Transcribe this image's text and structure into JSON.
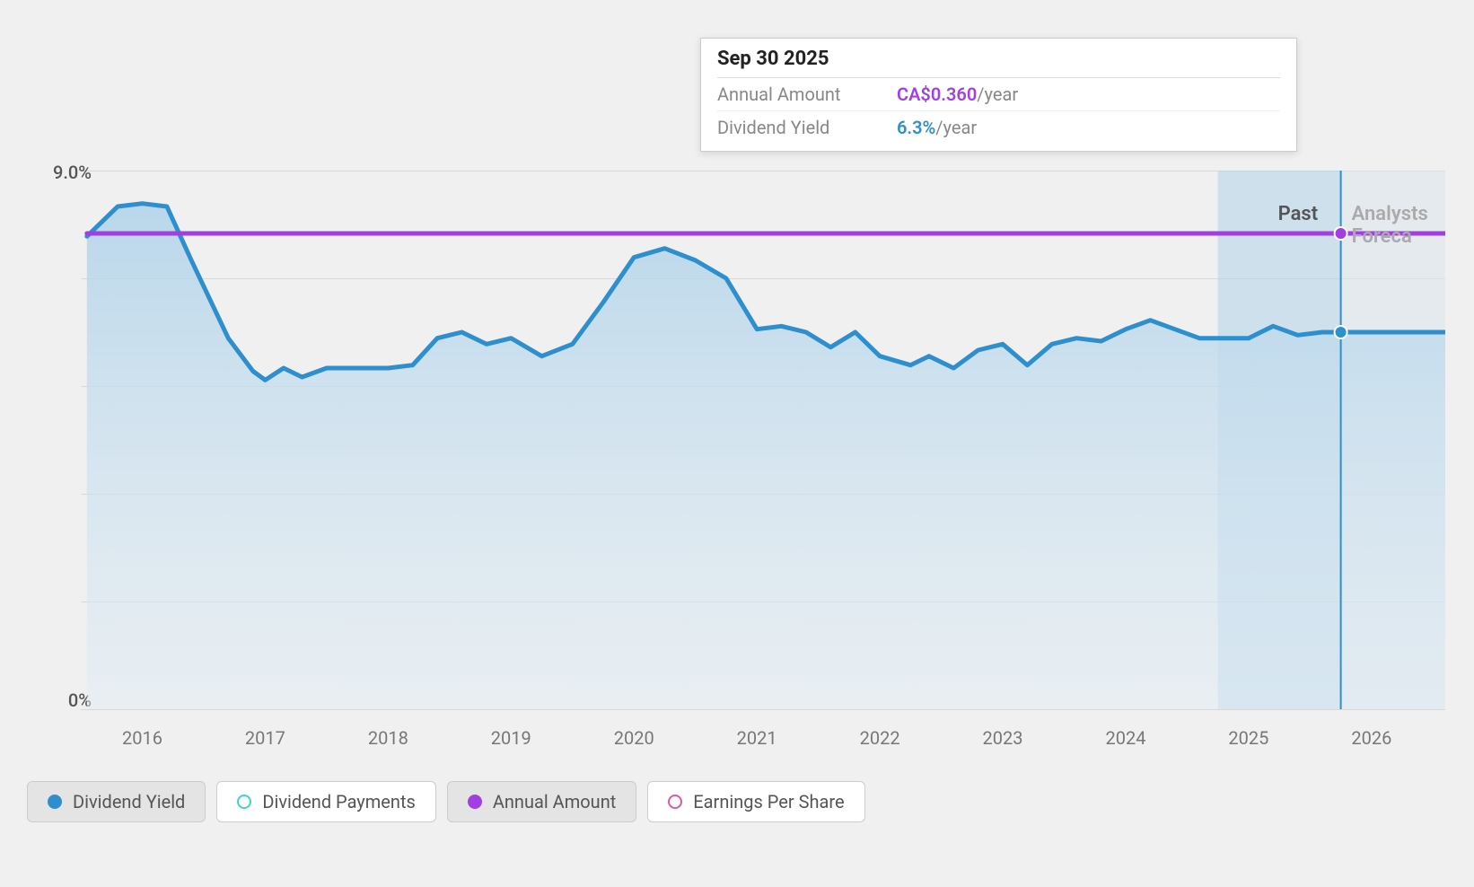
{
  "chart": {
    "type": "line-area",
    "background_color": "#f0f0f0",
    "plot_background": "#f0f0f0",
    "grid_color": "#d8d8d8",
    "y_axis": {
      "min": 0,
      "max": 9.0,
      "ticks": [
        0,
        1.8,
        3.6,
        5.4,
        7.2,
        9.0
      ],
      "visible_labels": {
        "0": "0%",
        "9": "9.0%"
      },
      "label_fontsize": 20,
      "label_color": "#555555"
    },
    "x_axis": {
      "min": 2015.5,
      "max": 2026.6,
      "ticks": [
        2016,
        2017,
        2018,
        2019,
        2020,
        2021,
        2022,
        2023,
        2024,
        2025,
        2026
      ],
      "label_fontsize": 20,
      "label_color": "#777777"
    },
    "bands": {
      "past": {
        "start": 2024.75,
        "end": 2025.75,
        "color": "#b3d4ea",
        "opacity": 0.55,
        "label": "Past",
        "label_color": "#555555"
      },
      "forecast": {
        "start": 2025.75,
        "end": 2026.6,
        "color": "#dce6ef",
        "opacity": 0.55,
        "label": "Analysts Foreca",
        "label_color": "#aaaaaa"
      }
    },
    "series": {
      "dividend_yield": {
        "label": "Dividend Yield",
        "color": "#2e8fce",
        "fill_top": "#b3d4ea",
        "fill_bottom": "#e1ecf4",
        "line_width": 5,
        "marker": {
          "x": 2025.75,
          "y": 6.3,
          "r": 7
        },
        "points": [
          [
            2015.55,
            7.9
          ],
          [
            2015.8,
            8.4
          ],
          [
            2016.0,
            8.45
          ],
          [
            2016.2,
            8.4
          ],
          [
            2016.4,
            7.5
          ],
          [
            2016.7,
            6.2
          ],
          [
            2016.9,
            5.65
          ],
          [
            2017.0,
            5.5
          ],
          [
            2017.15,
            5.7
          ],
          [
            2017.3,
            5.55
          ],
          [
            2017.5,
            5.7
          ],
          [
            2017.7,
            5.7
          ],
          [
            2018.0,
            5.7
          ],
          [
            2018.2,
            5.75
          ],
          [
            2018.4,
            6.2
          ],
          [
            2018.6,
            6.3
          ],
          [
            2018.8,
            6.1
          ],
          [
            2019.0,
            6.2
          ],
          [
            2019.25,
            5.9
          ],
          [
            2019.5,
            6.1
          ],
          [
            2019.75,
            6.8
          ],
          [
            2020.0,
            7.55
          ],
          [
            2020.25,
            7.7
          ],
          [
            2020.5,
            7.5
          ],
          [
            2020.75,
            7.2
          ],
          [
            2021.0,
            6.35
          ],
          [
            2021.2,
            6.4
          ],
          [
            2021.4,
            6.3
          ],
          [
            2021.6,
            6.05
          ],
          [
            2021.8,
            6.3
          ],
          [
            2022.0,
            5.9
          ],
          [
            2022.25,
            5.75
          ],
          [
            2022.4,
            5.9
          ],
          [
            2022.6,
            5.7
          ],
          [
            2022.8,
            6.0
          ],
          [
            2023.0,
            6.1
          ],
          [
            2023.2,
            5.75
          ],
          [
            2023.4,
            6.1
          ],
          [
            2023.6,
            6.2
          ],
          [
            2023.8,
            6.15
          ],
          [
            2024.0,
            6.35
          ],
          [
            2024.2,
            6.5
          ],
          [
            2024.4,
            6.35
          ],
          [
            2024.6,
            6.2
          ],
          [
            2024.8,
            6.2
          ],
          [
            2025.0,
            6.2
          ],
          [
            2025.2,
            6.4
          ],
          [
            2025.4,
            6.25
          ],
          [
            2025.6,
            6.3
          ],
          [
            2025.75,
            6.3
          ],
          [
            2026.6,
            6.3
          ]
        ]
      },
      "annual_amount": {
        "label": "Annual Amount",
        "color": "#a23fe0",
        "line_width": 5,
        "marker": {
          "x": 2025.75,
          "y": 7.95,
          "r": 7
        },
        "points": [
          [
            2015.55,
            7.95
          ],
          [
            2026.6,
            7.95
          ]
        ]
      },
      "dividend_payments": {
        "label": "Dividend Payments",
        "color": "#3fd4c8",
        "visible": false
      },
      "earnings_per_share": {
        "label": "Earnings Per Share",
        "color": "#e05a9a",
        "visible": false
      }
    },
    "tooltip": {
      "date": "Sep 30 2025",
      "rows": [
        {
          "label": "Annual Amount",
          "value": "CA$0.360",
          "unit": "/year",
          "color": "#a23fe0"
        },
        {
          "label": "Dividend Yield",
          "value": "6.3%",
          "unit": "/year",
          "color": "#2e8fce"
        }
      ],
      "vline_x": 2025.75,
      "vline_color": "#2e8fce"
    },
    "legend": [
      {
        "key": "dividend_yield",
        "label": "Dividend Yield",
        "color": "#2e8fce",
        "hollow": false,
        "active": true
      },
      {
        "key": "dividend_payments",
        "label": "Dividend Payments",
        "color": "#3fd4c8",
        "hollow": true,
        "active": false
      },
      {
        "key": "annual_amount",
        "label": "Annual Amount",
        "color": "#a23fe0",
        "hollow": false,
        "active": true
      },
      {
        "key": "earnings_per_share",
        "label": "Earnings Per Share",
        "color": "#e05a9a",
        "hollow": true,
        "active": false
      }
    ]
  }
}
